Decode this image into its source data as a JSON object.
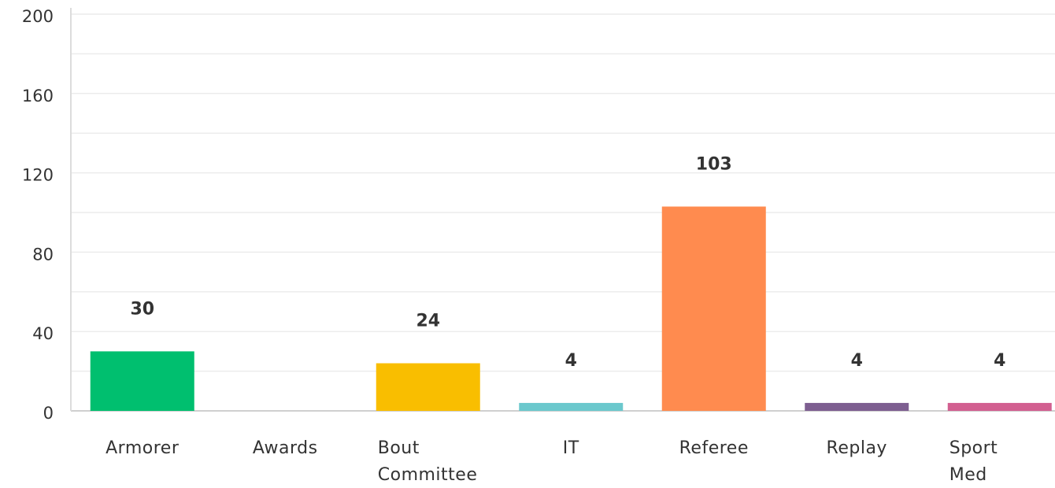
{
  "chart_data": {
    "type": "bar",
    "categories": [
      "Armorer",
      "Awards",
      "Bout Committee",
      "IT",
      "Referee",
      "Replay",
      "Sport Med"
    ],
    "values": [
      30,
      null,
      24,
      4,
      103,
      4,
      4
    ],
    "colors": [
      "#00bf6f",
      "#cccccc",
      "#f9be00",
      "#6bc8cd",
      "#ff8b4f",
      "#7d5e90",
      "#d25f90"
    ],
    "ylim": [
      0,
      200
    ],
    "yticks": [
      0,
      40,
      80,
      120,
      160,
      200
    ],
    "yminor": [
      20,
      60,
      100,
      140,
      180
    ],
    "grid": true
  }
}
